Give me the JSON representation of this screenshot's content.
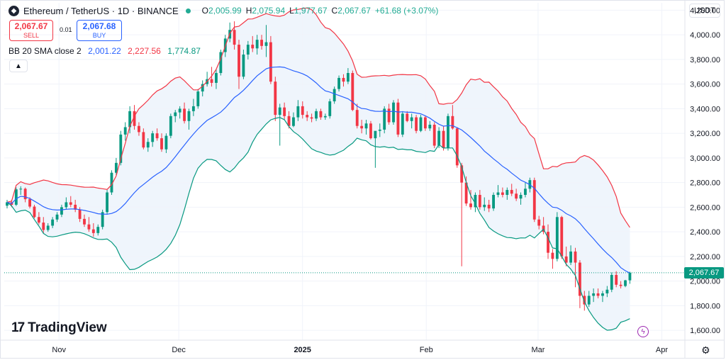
{
  "header": {
    "title": "Ethereum / TetherUS · 1D · BINANCE",
    "o_key": "O",
    "o_val": "2,005.99",
    "h_key": "H",
    "h_val": "2,075.94",
    "l_key": "L",
    "l_val": "1,977.67",
    "c_key": "C",
    "c_val": "2,067.67",
    "change": "+61.68 (+3.07%)"
  },
  "trade": {
    "sell_price": "2,067.67",
    "sell_label": "SELL",
    "spread": "0.01",
    "buy_price": "2,067.68",
    "buy_label": "BUY"
  },
  "indicator": {
    "name": "BB 20 SMA close 2",
    "basis": "2,001.22",
    "upper": "2,227.56",
    "lower": "1,774.87"
  },
  "currency": "USDT",
  "last_price": "2,067.67",
  "brand": "TradingView",
  "colors": {
    "up": "#089981",
    "down": "#f23645",
    "basis": "#2962ff",
    "upper": "#f23645",
    "lower": "#089981",
    "band_fill": "#e8f1fb"
  },
  "icons": {
    "symbol": "ethereum-icon",
    "collapse": "chevron-up-icon",
    "alert": "lightning-icon",
    "settings": "gear-icon"
  },
  "chart_data": {
    "type": "candlestick",
    "y_scale": "linear",
    "ylim": [
      1520,
      4260
    ],
    "ytick_labels": [
      "4,200.00",
      "4,000.00",
      "3,800.00",
      "3,600.00",
      "3,400.00",
      "3,200.00",
      "3,000.00",
      "2,800.00",
      "2,600.00",
      "2,400.00",
      "2,200.00",
      "2,000.00",
      "1,800.00",
      "1,600.00"
    ],
    "yticks": [
      4200,
      4000,
      3800,
      3600,
      3400,
      3200,
      3000,
      2800,
      2600,
      2400,
      2200,
      2000,
      1800,
      1600
    ],
    "xticks": [
      {
        "label": "Nov",
        "date": "2024-11-01"
      },
      {
        "label": "Dec",
        "date": "2024-12-01"
      },
      {
        "label": "2025",
        "date": "2025-01-01",
        "bold": true
      },
      {
        "label": "Feb",
        "date": "2025-02-01"
      },
      {
        "label": "Mar",
        "date": "2025-03-01"
      },
      {
        "label": "Apr",
        "date": "2025-04-01"
      }
    ],
    "first_date": "2024-10-19",
    "last_date": "2025-03-24",
    "x_end_date": "2025-04-05",
    "ohlc": [
      [
        2612,
        2660,
        2590,
        2640
      ],
      [
        2640,
        2660,
        2600,
        2620
      ],
      [
        2620,
        2760,
        2610,
        2745
      ],
      [
        2745,
        2770,
        2700,
        2750
      ],
      [
        2750,
        2760,
        2640,
        2665
      ],
      [
        2665,
        2680,
        2590,
        2605
      ],
      [
        2605,
        2620,
        2510,
        2520
      ],
      [
        2520,
        2560,
        2460,
        2475
      ],
      [
        2475,
        2520,
        2390,
        2415
      ],
      [
        2415,
        2470,
        2400,
        2450
      ],
      [
        2450,
        2520,
        2430,
        2500
      ],
      [
        2500,
        2560,
        2480,
        2540
      ],
      [
        2540,
        2620,
        2520,
        2600
      ],
      [
        2600,
        2680,
        2580,
        2640
      ],
      [
        2640,
        2690,
        2600,
        2620
      ],
      [
        2620,
        2660,
        2560,
        2580
      ],
      [
        2580,
        2600,
        2480,
        2505
      ],
      [
        2505,
        2540,
        2440,
        2460
      ],
      [
        2460,
        2520,
        2400,
        2420
      ],
      [
        2420,
        2470,
        2360,
        2390
      ],
      [
        2390,
        2460,
        2370,
        2440
      ],
      [
        2440,
        2580,
        2420,
        2560
      ],
      [
        2560,
        2740,
        2540,
        2720
      ],
      [
        2720,
        2900,
        2700,
        2880
      ],
      [
        2880,
        3000,
        2860,
        2960
      ],
      [
        2960,
        3220,
        2940,
        3190
      ],
      [
        3190,
        3290,
        3140,
        3250
      ],
      [
        3250,
        3420,
        3200,
        3380
      ],
      [
        3380,
        3430,
        3230,
        3260
      ],
      [
        3260,
        3290,
        3180,
        3210
      ],
      [
        3210,
        3240,
        3070,
        3085
      ],
      [
        3085,
        3160,
        3050,
        3130
      ],
      [
        3130,
        3220,
        3090,
        3200
      ],
      [
        3200,
        3240,
        3140,
        3160
      ],
      [
        3160,
        3200,
        3050,
        3070
      ],
      [
        3070,
        3200,
        3040,
        3180
      ],
      [
        3180,
        3360,
        3160,
        3340
      ],
      [
        3340,
        3390,
        3290,
        3370
      ],
      [
        3370,
        3420,
        3320,
        3400
      ],
      [
        3400,
        3450,
        3280,
        3300
      ],
      [
        3300,
        3400,
        3230,
        3380
      ],
      [
        3380,
        3480,
        3340,
        3420
      ],
      [
        3420,
        3560,
        3400,
        3540
      ],
      [
        3540,
        3630,
        3500,
        3600
      ],
      [
        3600,
        3700,
        3580,
        3640
      ],
      [
        3640,
        3740,
        3580,
        3610
      ],
      [
        3610,
        3720,
        3560,
        3690
      ],
      [
        3690,
        3880,
        3670,
        3860
      ],
      [
        3860,
        4000,
        3820,
        3970
      ],
      [
        3970,
        4100,
        3940,
        4040
      ],
      [
        4040,
        4110,
        3880,
        3920
      ],
      [
        3920,
        3960,
        3560,
        3660
      ],
      [
        3660,
        3880,
        3640,
        3840
      ],
      [
        3840,
        3950,
        3800,
        3920
      ],
      [
        3920,
        3990,
        3860,
        3890
      ],
      [
        3890,
        4000,
        3840,
        3960
      ],
      [
        3960,
        4000,
        3880,
        3910
      ],
      [
        3910,
        4080,
        3820,
        3940
      ],
      [
        3940,
        3990,
        3600,
        3620
      ],
      [
        3620,
        3660,
        3300,
        3350
      ],
      [
        3350,
        3440,
        3100,
        3410
      ],
      [
        3410,
        3450,
        3310,
        3340
      ],
      [
        3340,
        3380,
        3240,
        3260
      ],
      [
        3260,
        3370,
        3250,
        3330
      ],
      [
        3330,
        3470,
        3300,
        3420
      ],
      [
        3420,
        3460,
        3320,
        3350
      ],
      [
        3350,
        3380,
        3300,
        3330
      ],
      [
        3330,
        3360,
        3290,
        3320
      ],
      [
        3320,
        3400,
        3300,
        3380
      ],
      [
        3380,
        3400,
        3310,
        3330
      ],
      [
        3330,
        3360,
        3310,
        3340
      ],
      [
        3340,
        3480,
        3320,
        3460
      ],
      [
        3460,
        3580,
        3440,
        3560
      ],
      [
        3560,
        3670,
        3540,
        3650
      ],
      [
        3650,
        3680,
        3580,
        3620
      ],
      [
        3620,
        3730,
        3600,
        3690
      ],
      [
        3690,
        3710,
        3380,
        3390
      ],
      [
        3390,
        3440,
        3240,
        3260
      ],
      [
        3260,
        3310,
        3200,
        3240
      ],
      [
        3240,
        3310,
        3190,
        3280
      ],
      [
        3280,
        3300,
        3150,
        3160
      ],
      [
        3160,
        3200,
        2920,
        3220
      ],
      [
        3220,
        3280,
        3170,
        3230
      ],
      [
        3230,
        3420,
        3200,
        3400
      ],
      [
        3400,
        3440,
        3270,
        3290
      ],
      [
        3290,
        3470,
        3270,
        3450
      ],
      [
        3450,
        3480,
        3170,
        3190
      ],
      [
        3190,
        3380,
        3170,
        3360
      ],
      [
        3360,
        3380,
        3290,
        3300
      ],
      [
        3300,
        3360,
        3240,
        3330
      ],
      [
        3330,
        3350,
        3200,
        3220
      ],
      [
        3220,
        3350,
        3210,
        3330
      ],
      [
        3330,
        3340,
        3220,
        3240
      ],
      [
        3240,
        3300,
        3220,
        3270
      ],
      [
        3270,
        3290,
        3080,
        3100
      ],
      [
        3100,
        3250,
        3080,
        3220
      ],
      [
        3220,
        3260,
        3060,
        3080
      ],
      [
        3080,
        3360,
        3060,
        3340
      ],
      [
        3340,
        3430,
        3230,
        3240
      ],
      [
        3240,
        3250,
        2920,
        2940
      ],
      [
        2940,
        2960,
        2120,
        2800
      ],
      [
        2800,
        2850,
        2610,
        2630
      ],
      [
        2630,
        2740,
        2580,
        2600
      ],
      [
        2600,
        2720,
        2560,
        2700
      ],
      [
        2700,
        2740,
        2580,
        2600
      ],
      [
        2600,
        2680,
        2570,
        2620
      ],
      [
        2620,
        2660,
        2560,
        2590
      ],
      [
        2590,
        2720,
        2570,
        2700
      ],
      [
        2700,
        2780,
        2680,
        2720
      ],
      [
        2720,
        2760,
        2680,
        2700
      ],
      [
        2700,
        2760,
        2660,
        2740
      ],
      [
        2740,
        2790,
        2690,
        2710
      ],
      [
        2710,
        2750,
        2650,
        2670
      ],
      [
        2670,
        2720,
        2620,
        2700
      ],
      [
        2700,
        2800,
        2680,
        2750
      ],
      [
        2750,
        2840,
        2720,
        2820
      ],
      [
        2820,
        2840,
        2480,
        2500
      ],
      [
        2500,
        2530,
        2420,
        2450
      ],
      [
        2450,
        2520,
        2380,
        2400
      ],
      [
        2400,
        2460,
        2180,
        2230
      ],
      [
        2230,
        2260,
        2100,
        2180
      ],
      [
        2180,
        2560,
        2160,
        2520
      ],
      [
        2520,
        2530,
        2180,
        2200
      ],
      [
        2200,
        2280,
        2120,
        2150
      ],
      [
        2150,
        2290,
        2130,
        2240
      ],
      [
        2240,
        2270,
        1950,
        2150
      ],
      [
        2150,
        2170,
        1780,
        1880
      ],
      [
        1880,
        1920,
        1760,
        1810
      ],
      [
        1810,
        1920,
        1790,
        1880
      ],
      [
        1880,
        1940,
        1830,
        1900
      ],
      [
        1900,
        1940,
        1860,
        1880
      ],
      [
        1880,
        1920,
        1830,
        1900
      ],
      [
        1900,
        1960,
        1870,
        1930
      ],
      [
        1930,
        2070,
        1910,
        2050
      ],
      [
        2050,
        2080,
        1950,
        1970
      ],
      [
        1970,
        2000,
        1940,
        1960
      ],
      [
        1960,
        2010,
        1950,
        2006
      ],
      [
        2006,
        2076,
        1978,
        2068
      ]
    ],
    "bollinger": {
      "length": 20,
      "source": "close",
      "stddev": 2,
      "last_basis": 2001.22,
      "last_upper": 2227.56,
      "last_lower": 1774.87
    },
    "last_price": 2067.67
  }
}
